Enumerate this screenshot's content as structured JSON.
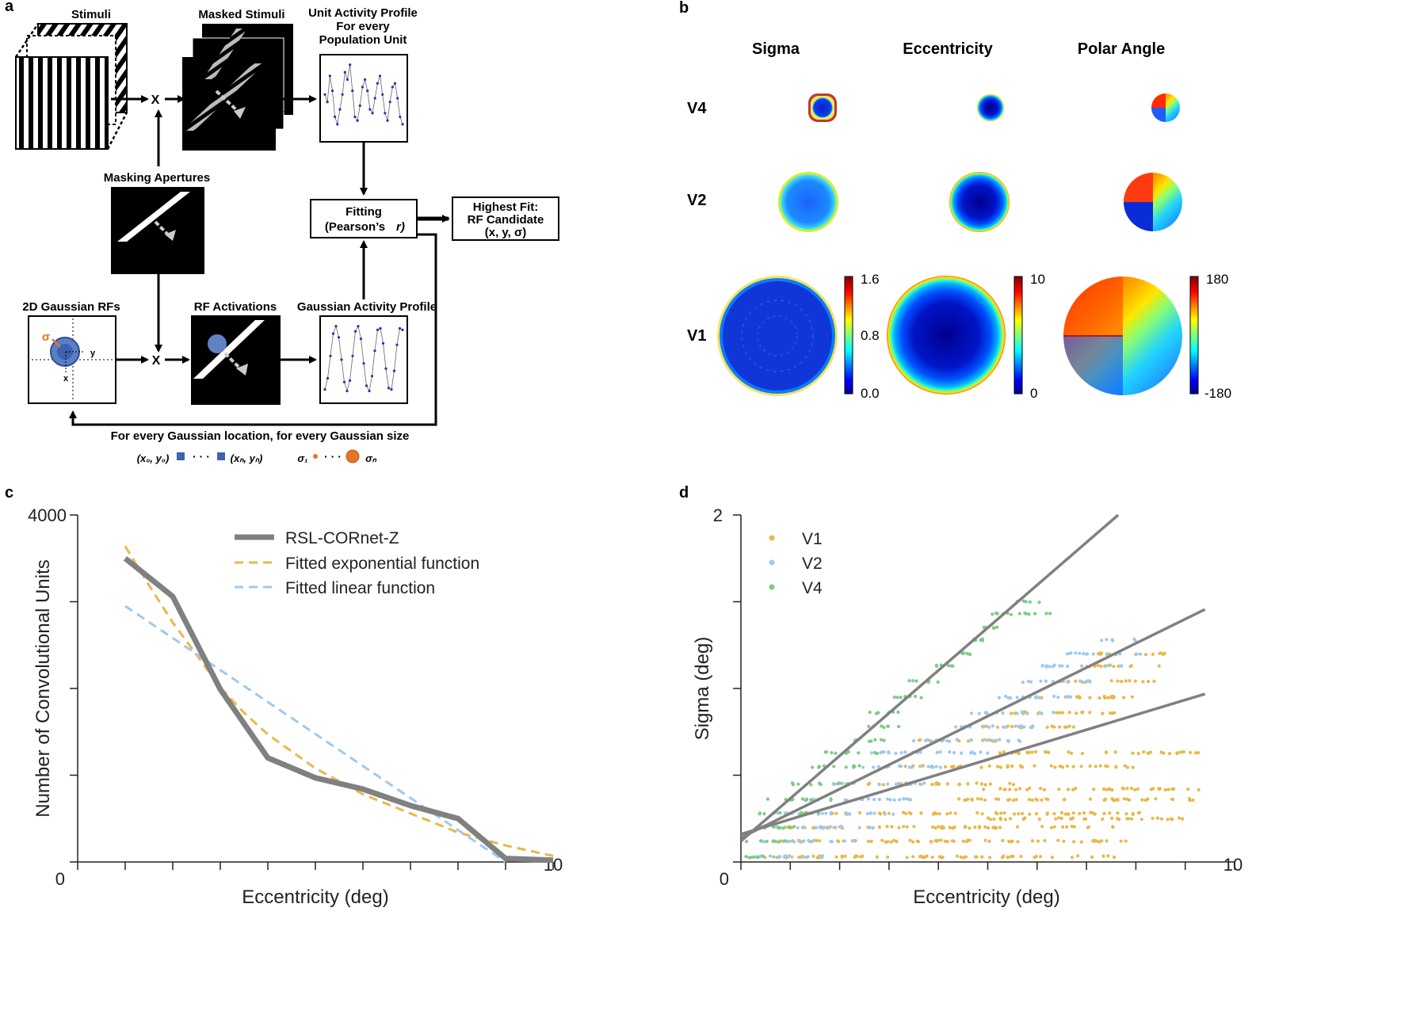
{
  "panel_labels": {
    "a": "a",
    "b": "b",
    "c": "c",
    "d": "d"
  },
  "panel_a": {
    "stimuli": "Stimuli",
    "masked_stimuli": "Masked Stimuli",
    "unit_profile_1": "Unit Activity Profile",
    "unit_profile_2": "For every",
    "unit_profile_3": "Population Unit",
    "masking_apertures": "Masking Apertures",
    "fitting_1": "Fitting",
    "fitting_2": "(Pearson’s",
    "fitting_r": "r)",
    "highest_fit_1": "Highest Fit:",
    "highest_fit_2": "RF Candidate",
    "highest_fit_3": "(x, y, σ)",
    "gaussian_rfs": "2D Gaussian RFs",
    "rf_activations": "RF Activations",
    "gaussian_profile": "Gaussian Activity Profile",
    "multiply": "X",
    "sigma_symbol": "σ",
    "axis_x": "x",
    "axis_y": "y",
    "loop_caption": "For every Gaussian location, for every Gaussian size",
    "loc_start": "(x₀, y₀)",
    "loc_end": "(xₙ, yₙ)",
    "sigma_start": "σ₁",
    "sigma_end": "σₙ",
    "ellipsis": "· · ·",
    "unit_profile_values": [
      0.55,
      0.45,
      0.8,
      0.6,
      0.25,
      0.15,
      0.35,
      0.55,
      0.85,
      0.75,
      0.95,
      0.6,
      0.25,
      0.2,
      0.4,
      0.65,
      0.75,
      0.6,
      0.35,
      0.3,
      0.5,
      0.7,
      0.8,
      0.55,
      0.3,
      0.2,
      0.45,
      0.65,
      0.7,
      0.5,
      0.25,
      0.15
    ],
    "gaussian_profile_values": [
      0.1,
      0.25,
      0.55,
      0.85,
      0.95,
      0.8,
      0.5,
      0.2,
      0.08,
      0.22,
      0.55,
      0.88,
      0.95,
      0.78,
      0.45,
      0.15,
      0.08,
      0.28,
      0.62,
      0.9,
      0.92,
      0.72,
      0.38,
      0.12,
      0.1,
      0.35,
      0.7,
      0.92,
      0.9
    ]
  },
  "panel_b": {
    "col_headers": [
      "Sigma",
      "Eccentricity",
      "Polar Angle"
    ],
    "row_labels": [
      "V4",
      "V2",
      "V1"
    ],
    "colorbars": [
      {
        "max": "1.6",
        "mid": "0.8",
        "min": "0.0"
      },
      {
        "max": "10",
        "min": "0"
      },
      {
        "max": "180",
        "min": "-180"
      }
    ],
    "colors": {
      "ring": "#c0392b"
    }
  },
  "chart_data": [
    {
      "id": "c",
      "type": "line",
      "xlabel": "Eccentricity (deg)",
      "ylabel": "Number of Convolutional Units",
      "xlim": [
        0,
        10
      ],
      "ylim": [
        0,
        4000
      ],
      "xtick_labels": [
        "0",
        "10"
      ],
      "ytick_labels": [
        "4000"
      ],
      "series": [
        {
          "name": "RSL-CORnet-Z",
          "color": "#808080",
          "x": [
            1,
            2,
            3,
            4,
            5,
            6,
            7,
            8,
            9,
            10
          ],
          "y": [
            3500,
            3060,
            1990,
            1200,
            970,
            840,
            650,
            500,
            40,
            20
          ]
        },
        {
          "name": "Fitted exponential function",
          "color": "#e8b84a",
          "x": [
            1,
            1.5,
            2,
            2.5,
            3,
            3.5,
            4,
            5,
            6,
            7,
            8,
            9,
            10
          ],
          "y": [
            3640,
            3190,
            2760,
            2390,
            2010,
            1720,
            1470,
            1080,
            780,
            560,
            340,
            190,
            70
          ]
        },
        {
          "name": "Fitted linear function",
          "color": "#9ccaf0",
          "x": [
            1,
            9
          ],
          "y": [
            2950,
            0
          ]
        }
      ]
    },
    {
      "id": "d",
      "type": "scatter",
      "xlabel": "Eccentricity (deg)",
      "ylabel": "Sigma (deg)",
      "xlim": [
        0,
        10
      ],
      "ylim": [
        0,
        2
      ],
      "xtick_labels": [
        "0",
        "10"
      ],
      "ytick_labels": [
        "2"
      ],
      "series": [
        {
          "name": "V1",
          "color": "#e8b84a",
          "fit": [
            0.16,
            0.086
          ]
        },
        {
          "name": "V2",
          "color": "#9ccaf0",
          "fit": [
            0.14,
            0.14
          ]
        },
        {
          "name": "V4",
          "color": "#7ccc87",
          "fit": [
            0.12,
            0.246
          ]
        }
      ]
    }
  ]
}
